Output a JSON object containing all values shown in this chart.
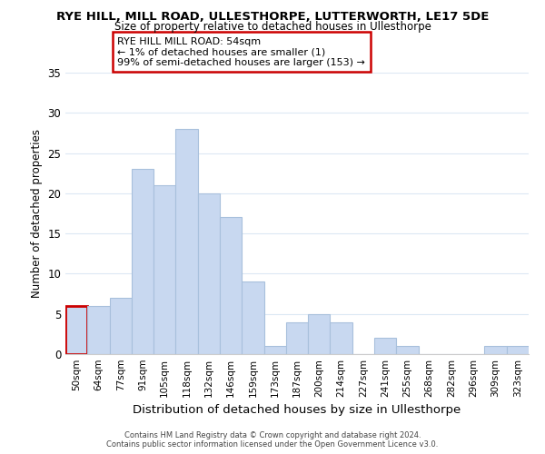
{
  "title": "RYE HILL, MILL ROAD, ULLESTHORPE, LUTTERWORTH, LE17 5DE",
  "subtitle": "Size of property relative to detached houses in Ullesthorpe",
  "xlabel": "Distribution of detached houses by size in Ullesthorpe",
  "ylabel": "Number of detached properties",
  "bar_color": "#c8d8f0",
  "bar_edge_color": "#a8c0dc",
  "highlight_bar_edge_color": "#cc0000",
  "highlight_bar_index": 0,
  "bin_labels": [
    "50sqm",
    "64sqm",
    "77sqm",
    "91sqm",
    "105sqm",
    "118sqm",
    "132sqm",
    "146sqm",
    "159sqm",
    "173sqm",
    "187sqm",
    "200sqm",
    "214sqm",
    "227sqm",
    "241sqm",
    "255sqm",
    "268sqm",
    "282sqm",
    "296sqm",
    "309sqm",
    "323sqm"
  ],
  "values": [
    6,
    6,
    7,
    23,
    21,
    28,
    20,
    17,
    9,
    1,
    4,
    5,
    4,
    0,
    2,
    1,
    0,
    0,
    0,
    1,
    1
  ],
  "ylim": [
    0,
    35
  ],
  "yticks": [
    0,
    5,
    10,
    15,
    20,
    25,
    30,
    35
  ],
  "annotation_title": "RYE HILL MILL ROAD: 54sqm",
  "annotation_line1": "← 1% of detached houses are smaller (1)",
  "annotation_line2": "99% of semi-detached houses are larger (153) →",
  "footer1": "Contains HM Land Registry data © Crown copyright and database right 2024.",
  "footer2": "Contains public sector information licensed under the Open Government Licence v3.0.",
  "bg_color": "#ffffff",
  "grid_color": "#dce8f4",
  "annotation_box_color": "#ffffff",
  "annotation_box_edge_color": "#cc0000"
}
